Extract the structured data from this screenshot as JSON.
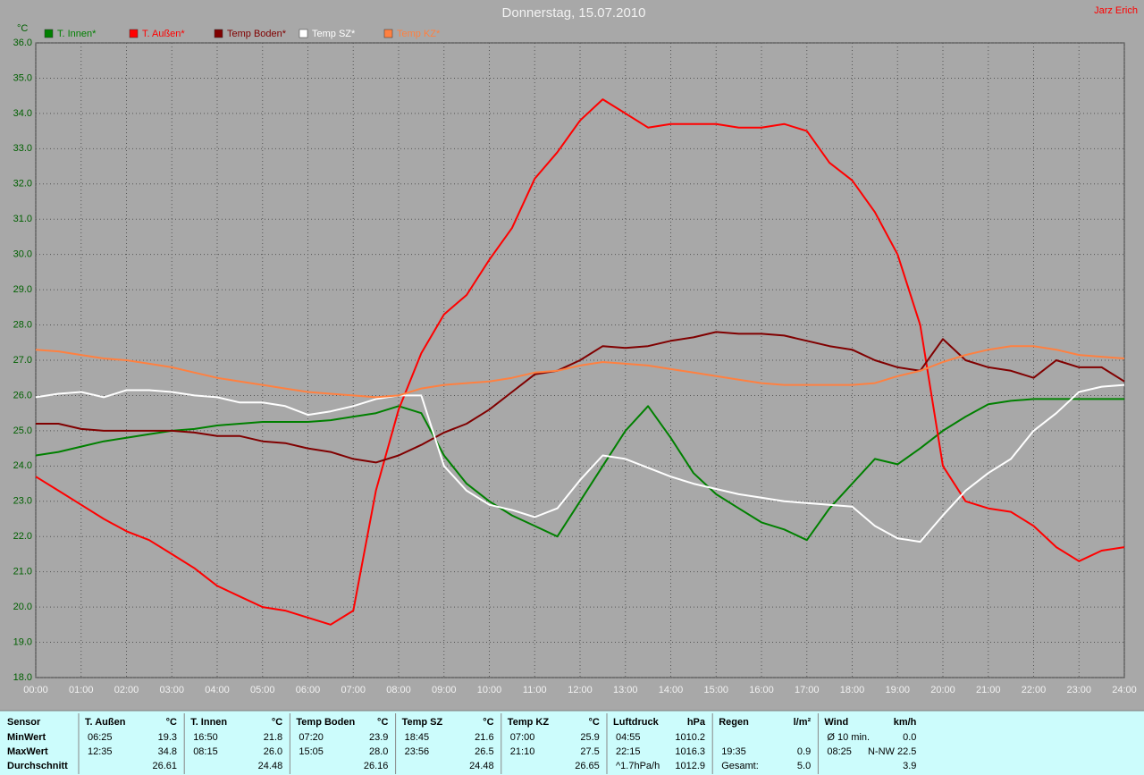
{
  "chart_data": {
    "type": "line",
    "title": "Donnerstag, 15.07.2010",
    "ylabel": "°C",
    "legend": "top-left",
    "grid": true,
    "x": [
      0,
      0.5,
      1,
      1.5,
      2,
      2.5,
      3,
      3.5,
      4,
      4.5,
      5,
      5.5,
      6,
      6.5,
      7,
      7.5,
      8,
      8.5,
      9,
      9.5,
      10,
      10.5,
      11,
      11.5,
      12,
      12.5,
      13,
      13.5,
      14,
      14.5,
      15,
      15.5,
      16,
      16.5,
      17,
      17.5,
      18,
      18.5,
      19,
      19.5,
      20,
      20.5,
      21,
      21.5,
      22,
      22.5,
      23,
      23.5,
      24
    ],
    "xlim": [
      0,
      24
    ],
    "xticks": [
      {
        "value": 0,
        "label": "00:00"
      },
      {
        "value": 1,
        "label": "01:00"
      },
      {
        "value": 2,
        "label": "02:00"
      },
      {
        "value": 3,
        "label": "03:00"
      },
      {
        "value": 4,
        "label": "04:00"
      },
      {
        "value": 5,
        "label": "05:00"
      },
      {
        "value": 6,
        "label": "06:00"
      },
      {
        "value": 7,
        "label": "07:00"
      },
      {
        "value": 8,
        "label": "08:00"
      },
      {
        "value": 9,
        "label": "09:00"
      },
      {
        "value": 10,
        "label": "10:00"
      },
      {
        "value": 11,
        "label": "11:00"
      },
      {
        "value": 12,
        "label": "12:00"
      },
      {
        "value": 13,
        "label": "13:00"
      },
      {
        "value": 14,
        "label": "14:00"
      },
      {
        "value": 15,
        "label": "15:00"
      },
      {
        "value": 16,
        "label": "16:00"
      },
      {
        "value": 17,
        "label": "17:00"
      },
      {
        "value": 18,
        "label": "18:00"
      },
      {
        "value": 19,
        "label": "19:00"
      },
      {
        "value": 20,
        "label": "20:00"
      },
      {
        "value": 21,
        "label": "21:00"
      },
      {
        "value": 22,
        "label": "22:00"
      },
      {
        "value": 23,
        "label": "23:00"
      },
      {
        "value": 24,
        "label": "24:00"
      }
    ],
    "ylim": [
      18,
      36
    ],
    "yticks": [
      {
        "value": 18,
        "label": "18.0"
      },
      {
        "value": 19,
        "label": "19.0"
      },
      {
        "value": 20,
        "label": "20.0"
      },
      {
        "value": 21,
        "label": "21.0"
      },
      {
        "value": 22,
        "label": "22.0"
      },
      {
        "value": 23,
        "label": "23.0"
      },
      {
        "value": 24,
        "label": "24.0"
      },
      {
        "value": 25,
        "label": "25.0"
      },
      {
        "value": 26,
        "label": "26.0"
      },
      {
        "value": 27,
        "label": "27.0"
      },
      {
        "value": 28,
        "label": "28.0"
      },
      {
        "value": 29,
        "label": "29.0"
      },
      {
        "value": 30,
        "label": "30.0"
      },
      {
        "value": 31,
        "label": "31.0"
      },
      {
        "value": 32,
        "label": "32.0"
      },
      {
        "value": 33,
        "label": "33.0"
      },
      {
        "value": 34,
        "label": "34.0"
      },
      {
        "value": 35,
        "label": "35.0"
      },
      {
        "value": 36,
        "label": "36.0"
      }
    ],
    "series": [
      {
        "name": "T. Innen*",
        "color": "#008000",
        "values": [
          24.3,
          24.4,
          24.55,
          24.7,
          24.8,
          24.9,
          25.0,
          25.05,
          25.15,
          25.2,
          25.25,
          25.25,
          25.25,
          25.3,
          25.4,
          25.5,
          25.7,
          25.5,
          24.3,
          23.5,
          23.0,
          22.6,
          22.3,
          22.0,
          23.0,
          24.0,
          25.0,
          25.7,
          24.8,
          23.8,
          23.2,
          22.8,
          22.4,
          22.2,
          21.9,
          22.8,
          23.5,
          24.2,
          24.05,
          24.5,
          25.0,
          25.4,
          25.75,
          25.85,
          25.9,
          25.9,
          25.9,
          25.9,
          25.9
        ]
      },
      {
        "name": "T. Außen*",
        "color": "#ff0000",
        "values": [
          23.7,
          23.3,
          22.9,
          22.5,
          22.15,
          21.9,
          21.5,
          21.1,
          20.6,
          20.3,
          20.0,
          19.9,
          19.7,
          19.5,
          19.9,
          23.3,
          25.6,
          27.2,
          28.3,
          28.85,
          29.85,
          30.75,
          32.15,
          32.9,
          33.8,
          34.4,
          34.0,
          33.6,
          33.7,
          33.7,
          33.7,
          33.6,
          33.6,
          33.7,
          33.5,
          32.6,
          32.1,
          31.2,
          30.0,
          28.0,
          24.0,
          23.0,
          22.8,
          22.7,
          22.3,
          21.7,
          21.3,
          21.6,
          21.7
        ]
      },
      {
        "name": "Temp Boden*",
        "color": "#800000",
        "values": [
          25.2,
          25.2,
          25.05,
          25.0,
          25.0,
          25.0,
          25.0,
          24.95,
          24.85,
          24.85,
          24.7,
          24.65,
          24.5,
          24.4,
          24.2,
          24.1,
          24.3,
          24.6,
          24.95,
          25.2,
          25.6,
          26.1,
          26.6,
          26.7,
          27.0,
          27.4,
          27.35,
          27.4,
          27.55,
          27.65,
          27.8,
          27.75,
          27.75,
          27.7,
          27.55,
          27.4,
          27.3,
          27.0,
          26.8,
          26.7,
          27.6,
          27.0,
          26.8,
          26.7,
          26.5,
          27.0,
          26.8,
          26.8,
          26.4
        ]
      },
      {
        "name": "Temp SZ*",
        "color": "#ffffff",
        "values": [
          25.95,
          26.05,
          26.1,
          25.95,
          26.15,
          26.15,
          26.1,
          26.0,
          25.95,
          25.8,
          25.8,
          25.7,
          25.45,
          25.55,
          25.7,
          25.9,
          26.0,
          26.0,
          24.0,
          23.3,
          22.9,
          22.75,
          22.55,
          22.8,
          23.6,
          24.3,
          24.2,
          23.95,
          23.7,
          23.5,
          23.35,
          23.2,
          23.1,
          23.0,
          22.95,
          22.9,
          22.85,
          22.3,
          21.95,
          21.85,
          22.6,
          23.3,
          23.8,
          24.2,
          25.0,
          25.5,
          26.1,
          26.25,
          26.3
        ]
      },
      {
        "name": "Temp KZ*",
        "color": "#ff8040",
        "values": [
          27.3,
          27.25,
          27.15,
          27.05,
          27.0,
          26.9,
          26.8,
          26.65,
          26.5,
          26.4,
          26.3,
          26.2,
          26.1,
          26.05,
          26.0,
          25.95,
          26.0,
          26.2,
          26.3,
          26.35,
          26.4,
          26.5,
          26.65,
          26.7,
          26.85,
          26.95,
          26.9,
          26.85,
          26.75,
          26.65,
          26.55,
          26.45,
          26.35,
          26.3,
          26.3,
          26.3,
          26.3,
          26.35,
          26.55,
          26.7,
          26.95,
          27.15,
          27.3,
          27.4,
          27.4,
          27.3,
          27.15,
          27.1,
          27.05
        ]
      }
    ]
  },
  "author": "Jarz Erich",
  "stats": {
    "row_labels": [
      "Sensor",
      "MinWert",
      "MaxWert",
      "Durchschnitt"
    ],
    "groups": [
      {
        "name": "T. Außen",
        "unit": "°C",
        "rows": [
          [
            "06:25",
            "19.3"
          ],
          [
            "12:35",
            "34.8"
          ],
          [
            "26.61"
          ]
        ]
      },
      {
        "name": "T. Innen",
        "unit": "°C",
        "rows": [
          [
            "16:50",
            "21.8"
          ],
          [
            "08:15",
            "26.0"
          ],
          [
            "24.48"
          ]
        ]
      },
      {
        "name": "Temp Boden",
        "unit": "°C",
        "rows": [
          [
            "07:20",
            "23.9"
          ],
          [
            "15:05",
            "28.0"
          ],
          [
            "26.16"
          ]
        ]
      },
      {
        "name": "Temp SZ",
        "unit": "°C",
        "rows": [
          [
            "18:45",
            "21.6"
          ],
          [
            "23:56",
            "26.5"
          ],
          [
            "24.48"
          ]
        ]
      },
      {
        "name": "Temp KZ",
        "unit": "°C",
        "rows": [
          [
            "07:00",
            "25.9"
          ],
          [
            "21:10",
            "27.5"
          ],
          [
            "26.65"
          ]
        ]
      },
      {
        "name": "Luftdruck",
        "unit": "hPa",
        "rows": [
          [
            "04:55",
            "1010.2"
          ],
          [
            "22:15",
            "1016.3"
          ],
          [
            "^1.7hPa/h",
            "1012.9"
          ]
        ]
      },
      {
        "name": "Regen",
        "unit": "l/m²",
        "rows": [
          [],
          [
            "19:35",
            "0.9"
          ],
          [
            "Gesamt:",
            "5.0"
          ]
        ]
      },
      {
        "name": "Wind",
        "unit": "km/h",
        "rows": [
          [
            "Ø 10 min.",
            "0.0"
          ],
          [
            "08:25",
            "N-NW 22.5"
          ],
          [
            "3.9"
          ]
        ]
      }
    ]
  }
}
